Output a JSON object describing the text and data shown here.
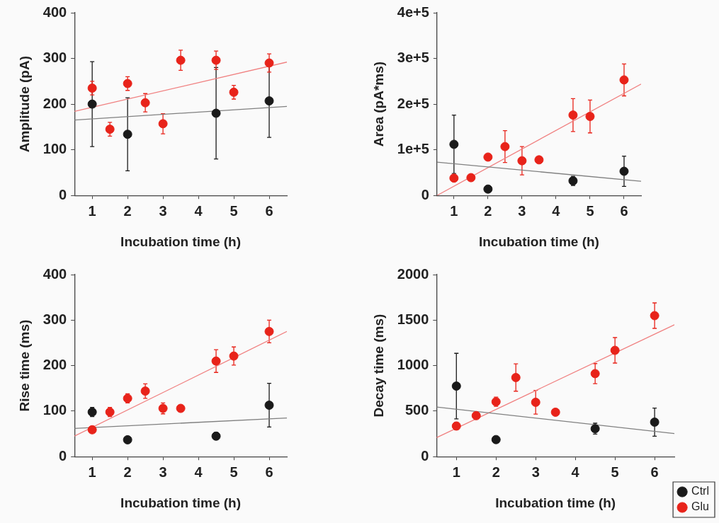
{
  "chart_data": [
    {
      "type": "scatter",
      "xlabel": "Incubation time (h)",
      "ylabel": "Amplitude (pA)",
      "xlim": [
        0.5,
        6.5
      ],
      "xticks": [
        1,
        2,
        3,
        4,
        5,
        6
      ],
      "ylim": [
        0,
        400
      ],
      "yticks": [
        0,
        100,
        200,
        300,
        400
      ],
      "grid": false,
      "legend": false,
      "marker": "circle",
      "series": [
        {
          "color": "#1a1a1a",
          "x": [
            1,
            2,
            4.5,
            6
          ],
          "values": [
            200,
            134,
            180,
            207
          ],
          "errors": [
            93,
            80,
            100,
            80
          ]
        },
        {
          "color": "#e8231a",
          "x": [
            1,
            1.5,
            2,
            2.5,
            3,
            3.5,
            4.5,
            5,
            6
          ],
          "values": [
            235,
            145,
            245,
            203,
            157,
            296,
            296,
            226,
            290
          ],
          "errors": [
            15,
            15,
            15,
            20,
            22,
            22,
            20,
            15,
            20
          ]
        },
        {
          "type": "line",
          "marker": "none",
          "color": "#808080",
          "x": [
            0.5,
            6.5
          ],
          "values": [
            165,
            195
          ]
        },
        {
          "type": "line",
          "marker": "none",
          "color": "#f08080",
          "x": [
            0.5,
            6.5
          ],
          "values": [
            184,
            292
          ]
        }
      ]
    },
    {
      "type": "scatter",
      "xlabel": "Incubation time (h)",
      "ylabel": "Area (pA*ms)",
      "xlim": [
        0.5,
        6.5
      ],
      "xticks": [
        1,
        2,
        3,
        4,
        5,
        6
      ],
      "ylim": [
        0,
        400000
      ],
      "yticks": [
        0,
        {
          "value": 100000,
          "label": "1e+5"
        },
        {
          "value": 200000,
          "label": "2e+5"
        },
        {
          "value": 300000,
          "label": "3e+5"
        },
        {
          "value": 400000,
          "label": "4e+5"
        }
      ],
      "grid": false,
      "legend": false,
      "marker": "circle",
      "series": [
        {
          "color": "#1a1a1a",
          "x": [
            1,
            2,
            4.5,
            6
          ],
          "values": [
            112000,
            14000,
            32000,
            53000
          ],
          "errors": [
            64000,
            null,
            10000,
            33000
          ]
        },
        {
          "color": "#e8231a",
          "x": [
            1,
            1.5,
            2,
            2.5,
            3,
            3.5,
            4.5,
            5,
            6
          ],
          "values": [
            38000,
            39000,
            84000,
            107000,
            76000,
            78000,
            176000,
            173000,
            253000
          ],
          "errors": [
            null,
            null,
            null,
            35000,
            31000,
            null,
            36000,
            36000,
            35000
          ]
        },
        {
          "type": "line",
          "marker": "none",
          "color": "#808080",
          "x": [
            0.5,
            6.5
          ],
          "values": [
            73000,
            31000
          ]
        },
        {
          "type": "line",
          "marker": "none",
          "color": "#f08080",
          "x": [
            0.5,
            6.5
          ],
          "values": [
            0,
            244000
          ]
        }
      ]
    },
    {
      "type": "scatter",
      "xlabel": "Incubation time (h)",
      "ylabel": "Rise time (ms)",
      "xlim": [
        0.5,
        6.5
      ],
      "xticks": [
        1,
        2,
        3,
        4,
        5,
        6
      ],
      "ylim": [
        0,
        400
      ],
      "yticks": [
        0,
        100,
        200,
        300,
        400
      ],
      "grid": false,
      "legend": false,
      "marker": "circle",
      "series": [
        {
          "color": "#1a1a1a",
          "x": [
            1,
            2,
            4.5,
            6
          ],
          "values": [
            98,
            37,
            45,
            113
          ],
          "errors": [
            10,
            null,
            8,
            48
          ]
        },
        {
          "color": "#e8231a",
          "x": [
            1,
            1.5,
            2,
            2.5,
            3,
            3.5,
            4.5,
            5,
            6
          ],
          "values": [
            59,
            98,
            128,
            144,
            106,
            106,
            210,
            221,
            275
          ],
          "errors": [
            null,
            10,
            10,
            16,
            12,
            null,
            25,
            20,
            25
          ]
        },
        {
          "type": "line",
          "marker": "none",
          "color": "#808080",
          "x": [
            0.5,
            6.5
          ],
          "values": [
            62,
            85
          ]
        },
        {
          "type": "line",
          "marker": "none",
          "color": "#f08080",
          "x": [
            0.5,
            6.5
          ],
          "values": [
            45,
            275
          ]
        }
      ]
    },
    {
      "type": "scatter",
      "xlabel": "Incubation time (h)",
      "ylabel": "Decay time (ms)",
      "xlim": [
        0.5,
        6.5
      ],
      "xticks": [
        1,
        2,
        3,
        4,
        5,
        6
      ],
      "ylim": [
        0,
        2000
      ],
      "yticks": [
        0,
        500,
        1000,
        1500,
        2000
      ],
      "grid": false,
      "legend": "right",
      "marker": "circle",
      "series": [
        {
          "name": "Ctrl",
          "color": "#1a1a1a",
          "x": [
            1,
            2,
            4.5,
            6
          ],
          "values": [
            775,
            187,
            307,
            379
          ],
          "errors": [
            360,
            null,
            60,
            155
          ]
        },
        {
          "name": "Glu",
          "color": "#e8231a",
          "x": [
            1,
            1.5,
            2,
            2.5,
            3,
            3.5,
            4.5,
            5,
            6
          ],
          "values": [
            336,
            450,
            603,
            869,
            597,
            488,
            912,
            1168,
            1549
          ],
          "errors": [
            40,
            null,
            50,
            150,
            130,
            null,
            110,
            140,
            140
          ]
        },
        {
          "type": "line",
          "marker": "none",
          "color": "#808080",
          "x": [
            0.5,
            6.5
          ],
          "values": [
            545,
            253
          ]
        },
        {
          "type": "line",
          "marker": "none",
          "color": "#f08080",
          "x": [
            0.5,
            6.5
          ],
          "values": [
            209,
            1449
          ]
        }
      ]
    }
  ]
}
